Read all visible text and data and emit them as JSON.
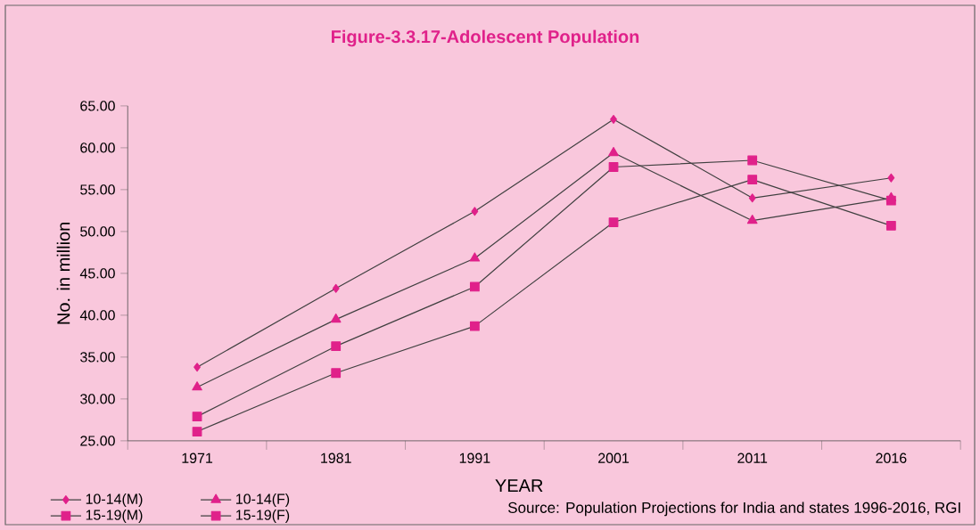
{
  "chart_data": {
    "type": "line",
    "title": "Figure-3.3.17-Adolescent Population",
    "xlabel": "YEAR",
    "ylabel": "No. in million",
    "categories": [
      "1971",
      "1981",
      "1991",
      "2001",
      "2011",
      "2016"
    ],
    "series": [
      {
        "name": "10-14(M)",
        "color": "#e0218a",
        "marker": "diamond",
        "values": [
          33.8,
          43.2,
          52.4,
          63.4,
          54.0,
          56.4
        ]
      },
      {
        "name": "10-14(F)",
        "color": "#e0218a",
        "marker": "triangle",
        "values": [
          31.4,
          39.5,
          46.8,
          59.4,
          51.3,
          54.0
        ]
      },
      {
        "name": "15-19(M)",
        "color": "#e0218a",
        "marker": "square",
        "values": [
          27.9,
          36.3,
          43.4,
          57.7,
          58.5,
          53.7
        ]
      },
      {
        "name": "15-19(F)",
        "color": "#e0218a",
        "marker": "square",
        "values": [
          26.1,
          33.1,
          38.7,
          51.1,
          56.2,
          50.7
        ]
      }
    ],
    "ylim": [
      25,
      65
    ],
    "yticks": [
      {
        "value": 25,
        "label": "25.00"
      },
      {
        "value": 30,
        "label": "30.00"
      },
      {
        "value": 35,
        "label": "35.00"
      },
      {
        "value": 40,
        "label": "40.00"
      },
      {
        "value": 45,
        "label": "45.00"
      },
      {
        "value": 50,
        "label": "50.00"
      },
      {
        "value": 55,
        "label": "55.00"
      },
      {
        "value": 60,
        "label": "60.00"
      },
      {
        "value": 65,
        "label": "65.00"
      }
    ],
    "legend": "bottom left",
    "grid": false,
    "annotations": [
      "Source: Population Projections for India and states 1996-2016, RGI"
    ]
  }
}
